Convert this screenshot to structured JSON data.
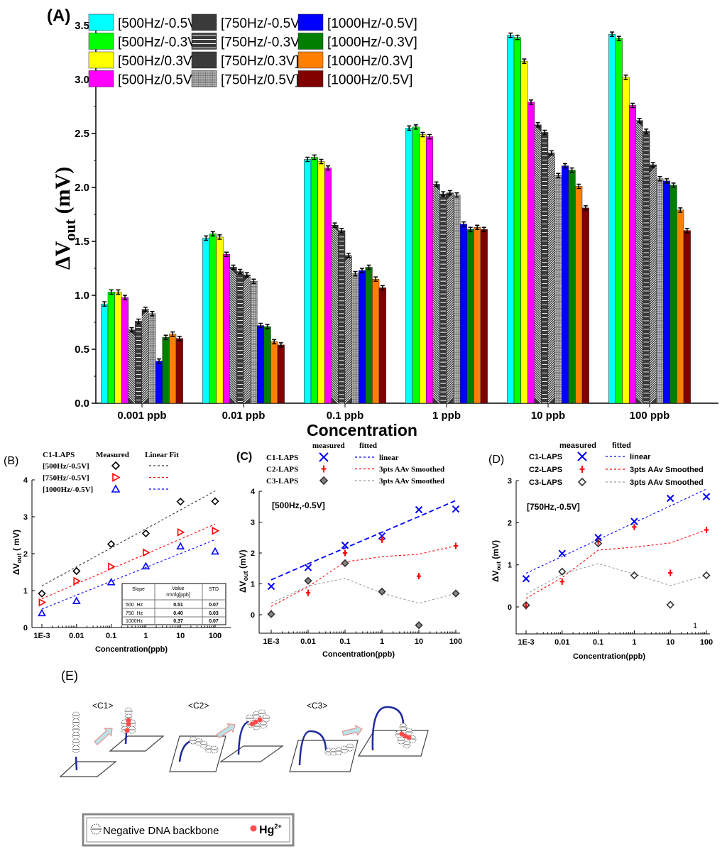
{
  "chart_data": [
    {
      "panel_label": "(A)",
      "type": "bar",
      "categories": [
        "0.001 ppb",
        "0.01 ppb",
        "0.1 ppb",
        "1 ppb",
        "10 ppb",
        "100 ppb"
      ],
      "xlabel": "Concentration",
      "ylabel": {
        "main": "ΔV",
        "sub": "out",
        "unit": " (mV)"
      },
      "ylim": [
        0,
        3.5
      ],
      "yticks": [
        0.0,
        0.5,
        1.0,
        1.5,
        2.0,
        2.5,
        3.0,
        3.5
      ],
      "error_bar_approx": 0.02,
      "legend_placement": "top",
      "series": [
        {
          "name": "[500Hz/-0.5V]",
          "color": "#00ffff",
          "pattern": "solid",
          "values": [
            0.92,
            1.53,
            2.26,
            2.55,
            3.41,
            3.42
          ]
        },
        {
          "name": "[500Hz/-0.3V]",
          "color": "#00ff00",
          "pattern": "solid",
          "values": [
            1.03,
            1.57,
            2.28,
            2.56,
            3.39,
            3.38
          ]
        },
        {
          "name": "[500Hz/0.3V]",
          "color": "#ffff00",
          "pattern": "solid",
          "values": [
            1.03,
            1.54,
            2.24,
            2.49,
            3.17,
            3.02
          ]
        },
        {
          "name": "[500Hz/0.5V]",
          "color": "#ff00ff",
          "pattern": "solid",
          "values": [
            0.98,
            1.38,
            2.18,
            2.47,
            2.79,
            2.76
          ]
        },
        {
          "name": "[750Hz/-0.5V]",
          "color": "#3a3a3a",
          "pattern": "diagonal-back",
          "values": [
            0.68,
            1.26,
            1.65,
            2.03,
            2.58,
            2.62
          ]
        },
        {
          "name": "[750Hz/-0.3V]",
          "color": "#3a3a3a",
          "pattern": "horizontal",
          "values": [
            0.76,
            1.22,
            1.6,
            1.94,
            2.51,
            2.52
          ]
        },
        {
          "name": "[750Hz/0.3V]",
          "color": "#3a3a3a",
          "pattern": "diagonal-forward",
          "values": [
            0.87,
            1.19,
            1.37,
            1.95,
            2.32,
            2.21
          ]
        },
        {
          "name": "[750Hz/0.5V]",
          "color": "#bdbdbd",
          "pattern": "grid",
          "values": [
            0.83,
            1.13,
            1.2,
            1.93,
            2.11,
            2.08
          ]
        },
        {
          "name": "[1000Hz/-0.5V]",
          "color": "#0000ff",
          "pattern": "solid",
          "values": [
            0.39,
            0.72,
            1.23,
            1.66,
            2.2,
            2.06
          ]
        },
        {
          "name": "[1000Hz/-0.3V]",
          "color": "#007f00",
          "pattern": "solid",
          "values": [
            0.61,
            0.71,
            1.26,
            1.61,
            2.16,
            2.02
          ]
        },
        {
          "name": "[1000Hz/0.3V]",
          "color": "#ff8000",
          "pattern": "solid",
          "values": [
            0.64,
            0.57,
            1.15,
            1.63,
            2.01,
            1.79
          ]
        },
        {
          "name": "[1000Hz/0.5V]",
          "color": "#800000",
          "pattern": "solid",
          "values": [
            0.6,
            0.54,
            1.07,
            1.61,
            1.81,
            1.6
          ]
        }
      ]
    },
    {
      "panel_label": "(B)",
      "type": "scatter",
      "x_scale": "log",
      "x": [
        0.001,
        0.01,
        0.1,
        1,
        10,
        100
      ],
      "xtick_labels": [
        "1E-3",
        "0.01",
        "0.1",
        "1",
        "10",
        "100"
      ],
      "xlabel": "Concentration(ppb)",
      "ylabel": {
        "main": "ΔV",
        "sub": "out",
        "unit": " ( mV)"
      },
      "ylim": [
        0,
        4
      ],
      "yticks": [
        0,
        1,
        2,
        3,
        4
      ],
      "legend": {
        "title": "C1-LAPS",
        "measured": "Measured",
        "fit": "Linear Fit"
      },
      "series": [
        {
          "name": "[500Hz/-0.5V]",
          "marker": "diamond",
          "color": "#000000",
          "values": [
            0.92,
            1.53,
            2.26,
            2.55,
            3.41,
            3.42
          ],
          "fit": [
            1.13,
            3.7
          ]
        },
        {
          "name": "[750Hz/-0.5V]",
          "marker": "triangle-right",
          "color": "#ff0000",
          "values": [
            0.68,
            1.26,
            1.65,
            2.03,
            2.58,
            2.62
          ],
          "fit": [
            0.78,
            2.8
          ]
        },
        {
          "name": "[1000Hz/-0.5V]",
          "marker": "triangle-up",
          "color": "#0000ff",
          "values": [
            0.39,
            0.72,
            1.23,
            1.66,
            2.2,
            2.06
          ],
          "fit": [
            0.5,
            2.38
          ]
        }
      ],
      "table": {
        "headers": [
          "Slope",
          "Value",
          "STD"
        ],
        "value_unit": "mV/lg[ppb]",
        "rows": [
          [
            "500  Hz",
            "0.51",
            "0.07"
          ],
          [
            "750  Hz",
            "0.40",
            "0.03"
          ],
          [
            "1000Hz",
            "0.37",
            "0.07"
          ]
        ]
      }
    },
    {
      "panel_label": "(C)",
      "type": "scatter",
      "x_scale": "log",
      "x": [
        0.001,
        0.01,
        0.1,
        1,
        10,
        100
      ],
      "xtick_labels": [
        "1E-3",
        "0.01",
        "0.1",
        "1",
        "10",
        "100"
      ],
      "xlabel": "Concentration(ppb)",
      "ylabel": {
        "main": "ΔV",
        "sub": "out",
        "unit": " (mV)"
      },
      "ylim": [
        -0.6,
        4
      ],
      "yticks": [
        0,
        1,
        2,
        3,
        4
      ],
      "annotation": "[500Hz,-0.5V]",
      "legend": {
        "measured": "measured",
        "fitted": "fitted"
      },
      "series": [
        {
          "name": "C1-LAPS",
          "marker": "x",
          "color": "#0000ff",
          "fit_label": "linear",
          "values": [
            0.92,
            1.53,
            2.25,
            2.55,
            3.4,
            3.42
          ],
          "fitted": [
            1.13,
            1.65,
            2.16,
            2.67,
            3.18,
            3.7
          ]
        },
        {
          "name": "C2-LAPS",
          "marker": "plus",
          "color": "#ff0000",
          "fit_label": "3pts AAv Smoothed",
          "values": [
            0.05,
            0.71,
            2.0,
            2.43,
            1.25,
            2.23
          ],
          "fitted": [
            0.27,
            0.91,
            1.71,
            1.88,
            1.96,
            2.23
          ]
        },
        {
          "name": "C3-LAPS",
          "marker": "diamond",
          "color": "#555555",
          "fit_label": "3pts AAv Smoothed",
          "values": [
            0.02,
            1.1,
            1.67,
            0.75,
            -0.34,
            0.69
          ],
          "fitted": [
            0.38,
            0.93,
            1.18,
            0.7,
            0.37,
            0.69
          ]
        }
      ]
    },
    {
      "panel_label": "(D)",
      "type": "scatter",
      "x_scale": "log",
      "x": [
        0.001,
        0.01,
        0.1,
        1,
        10,
        100
      ],
      "xtick_labels": [
        "1E-3",
        "0.01",
        "0.1",
        "1",
        "10",
        "100"
      ],
      "xlabel": "Concentration(ppb)",
      "ylabel": {
        "main": "ΔV",
        "sub": "out",
        "unit": " (mV)"
      },
      "ylim": [
        -0.6,
        3
      ],
      "yticks": [
        0,
        1,
        2,
        3
      ],
      "annotation": "[750Hz,-0.5V]",
      "stray_label": "1",
      "legend": {
        "measured": "measured",
        "fitted": "fitted"
      },
      "series": [
        {
          "name": "C1-LAPS",
          "marker": "x",
          "color": "#0000ff",
          "fit_label": "linear",
          "values": [
            0.67,
            1.27,
            1.65,
            2.03,
            2.58,
            2.62
          ],
          "fitted": [
            0.8,
            1.2,
            1.6,
            2.0,
            2.4,
            2.8
          ]
        },
        {
          "name": "C2-LAPS",
          "marker": "plus",
          "color": "#ff0000",
          "fit_label": "3pts AAv Smoothed",
          "values": [
            0.02,
            0.6,
            1.55,
            1.9,
            0.81,
            1.83
          ],
          "fitted": [
            0.2,
            0.7,
            1.35,
            1.42,
            1.52,
            1.83
          ]
        },
        {
          "name": "C3-LAPS",
          "marker": "diamond",
          "color": "#333333",
          "fit_label": "3pts AAv Smoothed",
          "values": [
            0.04,
            0.84,
            1.51,
            0.75,
            0.05,
            0.75
          ],
          "fitted": [
            0.3,
            0.78,
            1.03,
            0.78,
            0.51,
            0.75
          ]
        }
      ]
    }
  ],
  "diagram": {
    "panel_label": "(E)",
    "states": [
      "<C1>",
      "<C2>",
      "<C3>"
    ],
    "legend": {
      "backbone": "Negative DNA backbone",
      "ion": "Hg",
      "ion_charge": "2+"
    },
    "colors": {
      "dna": "#1f2a9c",
      "ion": "#ff4d4d",
      "arrow_fill": "#b9e3e6",
      "arrow_stroke": "#f08080"
    }
  }
}
